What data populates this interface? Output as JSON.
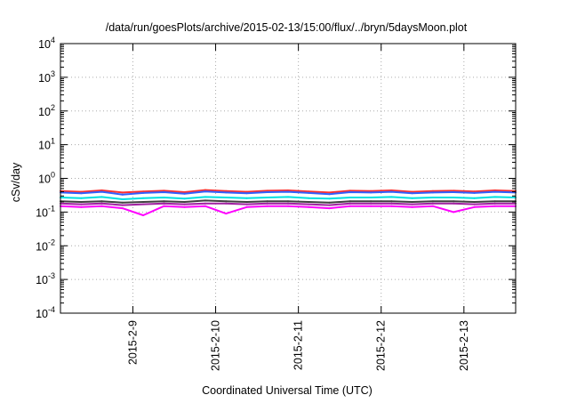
{
  "chart_data": {
    "type": "line",
    "title": "/data/run/goesPlots/archive/2015-02-13/15:00/flux/../bryn/5daysMoon.plot",
    "xlabel": "Coordinated Universal Time (UTC)",
    "ylabel": "cSv/day",
    "yscale": "log",
    "ylim": [
      0.0001,
      10000
    ],
    "xlim": [
      "2015-02-08 03:00",
      "2015-02-13 15:00"
    ],
    "grid": "on (dotted, at labeled ticks)",
    "legend": "none",
    "x_ticks": [
      {
        "date": "2015-02-09",
        "label": "2015-2-9"
      },
      {
        "date": "2015-02-10",
        "label": "2015-2-10"
      },
      {
        "date": "2015-02-11",
        "label": "2015-2-11"
      },
      {
        "date": "2015-02-12",
        "label": "2015-2-12"
      },
      {
        "date": "2015-02-13",
        "label": "2015-2-13"
      }
    ],
    "y_ticks": [
      {
        "value": 0.0001,
        "base": "10",
        "exp": "-4"
      },
      {
        "value": 0.001,
        "base": "10",
        "exp": "-3"
      },
      {
        "value": 0.01,
        "base": "10",
        "exp": "-2"
      },
      {
        "value": 0.1,
        "base": "10",
        "exp": "-1"
      },
      {
        "value": 1,
        "base": "10",
        "exp": "0"
      },
      {
        "value": 10,
        "base": "10",
        "exp": "1"
      },
      {
        "value": 100,
        "base": "10",
        "exp": "2"
      },
      {
        "value": 1000,
        "base": "10",
        "exp": "3"
      },
      {
        "value": 10000,
        "base": "10",
        "exp": "4"
      }
    ],
    "x": [
      "2015-02-08 03:00",
      "2015-02-08 09:00",
      "2015-02-08 15:00",
      "2015-02-08 21:00",
      "2015-02-09 03:00",
      "2015-02-09 09:00",
      "2015-02-09 15:00",
      "2015-02-09 21:00",
      "2015-02-10 03:00",
      "2015-02-10 09:00",
      "2015-02-10 15:00",
      "2015-02-10 21:00",
      "2015-02-11 03:00",
      "2015-02-11 09:00",
      "2015-02-11 15:00",
      "2015-02-11 21:00",
      "2015-02-12 03:00",
      "2015-02-12 09:00",
      "2015-02-12 15:00",
      "2015-02-12 21:00",
      "2015-02-13 03:00",
      "2015-02-13 09:00",
      "2015-02-13 15:00"
    ],
    "series": [
      {
        "color": "#ff3030",
        "values": [
          0.42,
          0.4,
          0.44,
          0.38,
          0.41,
          0.43,
          0.39,
          0.45,
          0.42,
          0.4,
          0.43,
          0.44,
          0.41,
          0.38,
          0.43,
          0.42,
          0.44,
          0.4,
          0.42,
          0.43,
          0.41,
          0.44,
          0.42
        ]
      },
      {
        "color": "#3060ff",
        "values": [
          0.38,
          0.36,
          0.4,
          0.33,
          0.37,
          0.39,
          0.35,
          0.41,
          0.38,
          0.36,
          0.39,
          0.4,
          0.37,
          0.34,
          0.39,
          0.38,
          0.4,
          0.36,
          0.38,
          0.39,
          0.37,
          0.4,
          0.38
        ]
      },
      {
        "color": "#00e0e0",
        "values": [
          0.27,
          0.26,
          0.28,
          0.24,
          0.26,
          0.27,
          0.25,
          0.28,
          0.27,
          0.26,
          0.27,
          0.28,
          0.26,
          0.25,
          0.27,
          0.27,
          0.28,
          0.26,
          0.27,
          0.27,
          0.26,
          0.28,
          0.27
        ]
      },
      {
        "color": "#404040",
        "values": [
          0.21,
          0.2,
          0.21,
          0.19,
          0.2,
          0.21,
          0.2,
          0.22,
          0.21,
          0.2,
          0.21,
          0.21,
          0.2,
          0.19,
          0.21,
          0.21,
          0.21,
          0.2,
          0.21,
          0.21,
          0.2,
          0.21,
          0.21
        ]
      },
      {
        "color": "#a020a0",
        "values": [
          0.18,
          0.17,
          0.18,
          0.16,
          0.17,
          0.18,
          0.17,
          0.18,
          0.18,
          0.17,
          0.18,
          0.18,
          0.17,
          0.16,
          0.18,
          0.18,
          0.18,
          0.17,
          0.18,
          0.18,
          0.17,
          0.18,
          0.18
        ]
      },
      {
        "color": "#ff00ff",
        "values": [
          0.15,
          0.14,
          0.15,
          0.13,
          0.08,
          0.15,
          0.14,
          0.15,
          0.09,
          0.14,
          0.15,
          0.15,
          0.14,
          0.13,
          0.15,
          0.15,
          0.15,
          0.14,
          0.15,
          0.1,
          0.14,
          0.15,
          0.15
        ]
      }
    ]
  }
}
